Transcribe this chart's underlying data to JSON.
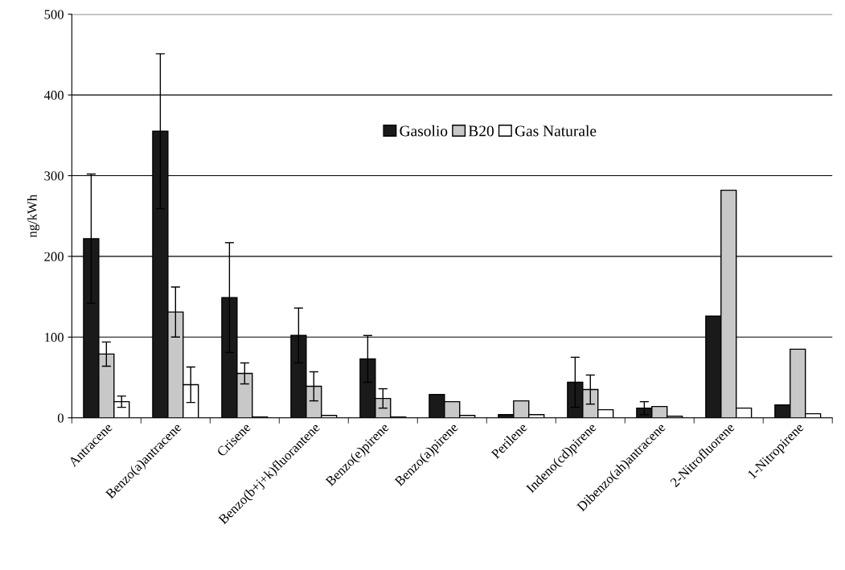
{
  "chart_data": {
    "type": "bar",
    "ylabel": "ng/kWh",
    "categories": [
      "Antracene",
      "Benzo(a)antracene",
      "Crisene",
      "Benzo(b+j+k)fluorantene",
      "Benzo(e)pirene",
      "Benzo(a)pirene",
      "Perilene",
      "Indeno(cd)pirene",
      "Dibenzo(ah)antracene",
      "2-Nitrofluorene",
      "1-Nitropirene"
    ],
    "series": [
      {
        "name": "Gasolio",
        "color": "#1a1a1a",
        "values": [
          222,
          355,
          149,
          102,
          73,
          29,
          4,
          44,
          12,
          126,
          16
        ],
        "errors": [
          80,
          96,
          68,
          34,
          29,
          null,
          null,
          31,
          8,
          null,
          null
        ]
      },
      {
        "name": "B20",
        "color": "#c8c8c8",
        "values": [
          79,
          131,
          55,
          39,
          24,
          20,
          21,
          35,
          14,
          282,
          85
        ],
        "errors": [
          15,
          31,
          13,
          18,
          12,
          null,
          null,
          18,
          null,
          null,
          null
        ]
      },
      {
        "name": "Gas Naturale",
        "color": "#ffffff",
        "values": [
          20,
          41,
          1,
          3,
          1,
          3,
          4,
          10,
          2,
          12,
          5
        ],
        "errors": [
          7,
          22,
          null,
          null,
          null,
          null,
          null,
          null,
          null,
          null,
          null
        ]
      }
    ],
    "ylim": [
      0,
      500
    ],
    "yticks": [
      0,
      100,
      200,
      300,
      400,
      500
    ],
    "grid": "y",
    "legend": "top"
  }
}
